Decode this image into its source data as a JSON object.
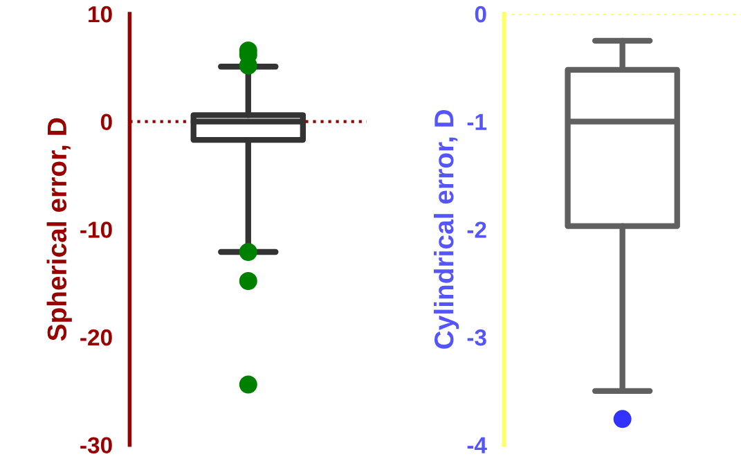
{
  "chart_data": [
    {
      "type": "box",
      "ylabel": "Spherical error, D",
      "categories": [
        null
      ],
      "ylim": [
        -30,
        10
      ],
      "yticks": [
        -30,
        -20,
        -10,
        0,
        10
      ],
      "tick_labels": "y",
      "grid": false,
      "series": [
        {
          "color": "#333333",
          "boxes": [
            {
              "low": -12.1,
              "q1": -1.7,
              "median": 0,
              "q3": 0.6,
              "high": 5.1
            }
          ]
        },
        {
          "type": "scatter",
          "color": "#008000",
          "x": [
            null,
            null,
            null,
            null,
            null,
            null
          ],
          "values": [
            6.6,
            6.2,
            5.2,
            -12.1,
            -14.8,
            -24.4
          ]
        }
      ],
      "ref_lines": [
        {
          "axis": "y",
          "value": 0,
          "color": "#990000",
          "line_style": "dotted"
        }
      ]
    },
    {
      "type": "box",
      "ylabel": "Cylindrical error, D",
      "categories": [
        null
      ],
      "ylim": [
        -4,
        0
      ],
      "yticks": [
        -4,
        -3,
        -2,
        -1,
        0
      ],
      "tick_labels": "y",
      "grid": false,
      "series": [
        {
          "color": "#606060",
          "boxes": [
            {
              "low": -3.5,
              "q1": -1.97,
              "median": -1.0,
              "q3": -0.52,
              "high": -0.25
            }
          ]
        },
        {
          "type": "scatter",
          "color": "#3333ff",
          "x": [
            null
          ],
          "values": [
            -3.76
          ]
        }
      ],
      "ref_lines": [
        {
          "axis": "y",
          "value": 0,
          "color": "#ffff66",
          "line_style": "dotted"
        }
      ]
    }
  ]
}
